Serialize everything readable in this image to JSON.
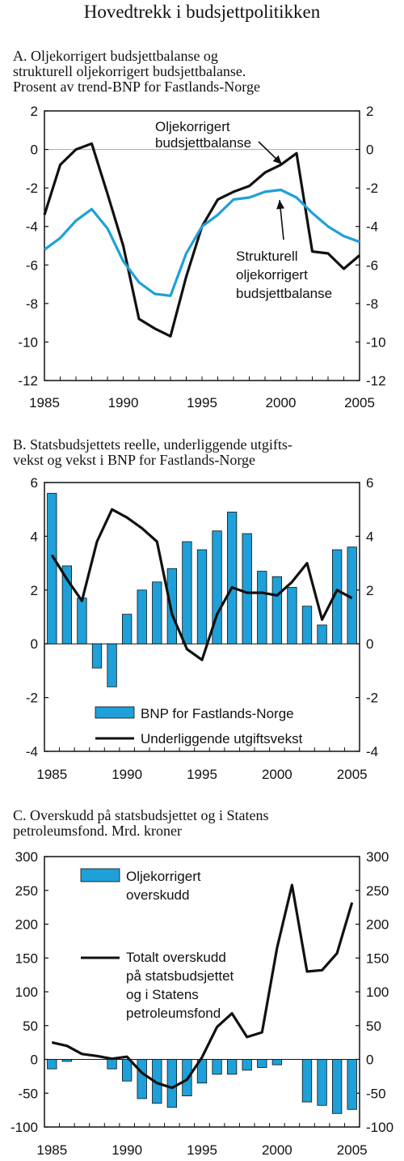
{
  "page_title": "Hovedtrekk i budsjettpolitikken",
  "colors": {
    "bar": "#1fa0d8",
    "line_black": "#111111",
    "line_blue": "#1fa0d8"
  },
  "chart_data": [
    {
      "id": "A",
      "type": "line",
      "title_lines": [
        "A.  Oljekorrigert budsjettbalanse og",
        "strukturell oljekorrigert budsjettbalanse.",
        "Prosent av trend-BNP for Fastlands-Norge"
      ],
      "x": [
        1985,
        1986,
        1987,
        1988,
        1989,
        1990,
        1991,
        1992,
        1993,
        1994,
        1995,
        1996,
        1997,
        1998,
        1999,
        2000,
        2001,
        2002,
        2003,
        2004,
        2005
      ],
      "xlim": [
        1985,
        2005
      ],
      "xticks": [
        "1985",
        "1990",
        "1995",
        "2000",
        "2005"
      ],
      "ylim": [
        -12,
        2
      ],
      "yticks": [
        "2",
        "0",
        "-2",
        "-4",
        "-6",
        "-8",
        "-10",
        "-12"
      ],
      "series": [
        {
          "name": "Oljekorrigert budsjettbalanse",
          "color": "#111111",
          "values": [
            -3.4,
            -0.8,
            0.0,
            0.3,
            -2.3,
            -5.0,
            -8.8,
            -9.3,
            -9.7,
            -6.6,
            -4.0,
            -2.6,
            -2.2,
            -1.9,
            -1.2,
            -0.8,
            -0.2,
            -5.3,
            -5.4,
            -6.2,
            -5.5
          ]
        },
        {
          "name": "Strukturell oljekorrigert budsjettbalanse",
          "color": "#1fa0d8",
          "values": [
            -5.2,
            -4.6,
            -3.7,
            -3.1,
            -4.1,
            -5.8,
            -6.9,
            -7.5,
            -7.6,
            -5.4,
            -4.0,
            -3.4,
            -2.6,
            -2.5,
            -2.2,
            -2.1,
            -2.5,
            -3.3,
            -4.0,
            -4.5,
            -4.8
          ]
        }
      ],
      "annotations": {
        "black_label": [
          "Oljekorrigert",
          "budsjettbalanse"
        ],
        "blue_label": [
          "Strukturell",
          "oljekorrigert",
          "budsjettbalanse"
        ]
      }
    },
    {
      "id": "B",
      "type": "bar",
      "title_lines": [
        "B.  Statsbudsjettets reelle, underliggende utgifts-",
        "vekst og vekst i BNP for Fastlands-Norge"
      ],
      "x": [
        1985,
        1986,
        1987,
        1988,
        1989,
        1990,
        1991,
        1992,
        1993,
        1994,
        1995,
        1996,
        1997,
        1998,
        1999,
        2000,
        2001,
        2002,
        2003,
        2004,
        2005
      ],
      "xlim": [
        1985,
        2005
      ],
      "xticks": [
        "1985",
        "1990",
        "1995",
        "2000",
        "2005"
      ],
      "ylim": [
        -4,
        6
      ],
      "yticks": [
        "6",
        "4",
        "2",
        "0",
        "-2",
        "-4"
      ],
      "series": [
        {
          "name": "BNP for Fastlands-Norge",
          "kind": "bar",
          "color": "#1fa0d8",
          "values": [
            5.6,
            2.9,
            1.7,
            -0.9,
            -1.6,
            1.1,
            2.0,
            2.3,
            2.8,
            3.8,
            3.5,
            4.2,
            4.9,
            4.1,
            2.7,
            2.5,
            2.1,
            1.4,
            0.7,
            3.5,
            3.6
          ]
        },
        {
          "name": "Underliggende utgiftsvekst",
          "kind": "line",
          "color": "#111111",
          "values": [
            3.3,
            2.4,
            1.6,
            3.8,
            5.0,
            4.7,
            4.3,
            3.8,
            1.1,
            -0.2,
            -0.6,
            1.1,
            2.1,
            1.9,
            1.9,
            1.8,
            2.3,
            3.0,
            0.9,
            2.0,
            1.7
          ]
        }
      ]
    },
    {
      "id": "C",
      "type": "bar",
      "title_lines": [
        "C.  Overskudd på statsbudsjettet og i  Statens",
        "petroleumsfond. Mrd. kroner"
      ],
      "x": [
        1985,
        1986,
        1987,
        1988,
        1989,
        1990,
        1991,
        1992,
        1993,
        1994,
        1995,
        1996,
        1997,
        1998,
        1999,
        2000,
        2001,
        2002,
        2003,
        2004,
        2005
      ],
      "xlim": [
        1985,
        2005
      ],
      "xticks": [
        "1985",
        "1990",
        "1995",
        "2000",
        "2005"
      ],
      "ylim": [
        -100,
        300
      ],
      "yticks": [
        "300",
        "250",
        "200",
        "150",
        "100",
        "50",
        "0",
        "-50",
        "-100"
      ],
      "series": [
        {
          "name": "Oljekorrigert overskudd",
          "kind": "bar",
          "color": "#1fa0d8",
          "values": [
            -14,
            -3,
            0,
            0,
            -14,
            -32,
            -58,
            -65,
            -71,
            -54,
            -35,
            -22,
            -22,
            -16,
            -12,
            -8,
            0,
            -63,
            -68,
            -80,
            -74
          ]
        },
        {
          "name": "Totalt overskudd på statsbudsjettet og i Statens petroleumsfond",
          "kind": "line",
          "color": "#111111",
          "values": [
            25,
            20,
            8,
            5,
            1,
            4,
            -20,
            -35,
            -42,
            -30,
            3,
            48,
            68,
            33,
            40,
            165,
            258,
            130,
            132,
            157,
            232
          ]
        }
      ],
      "legend": {
        "bar_label": [
          "Oljekorrigert",
          "overskudd"
        ],
        "line_label": [
          "Totalt overskudd",
          "på statsbudsjettet",
          "og i Statens",
          "petroleumsfond"
        ]
      }
    }
  ]
}
